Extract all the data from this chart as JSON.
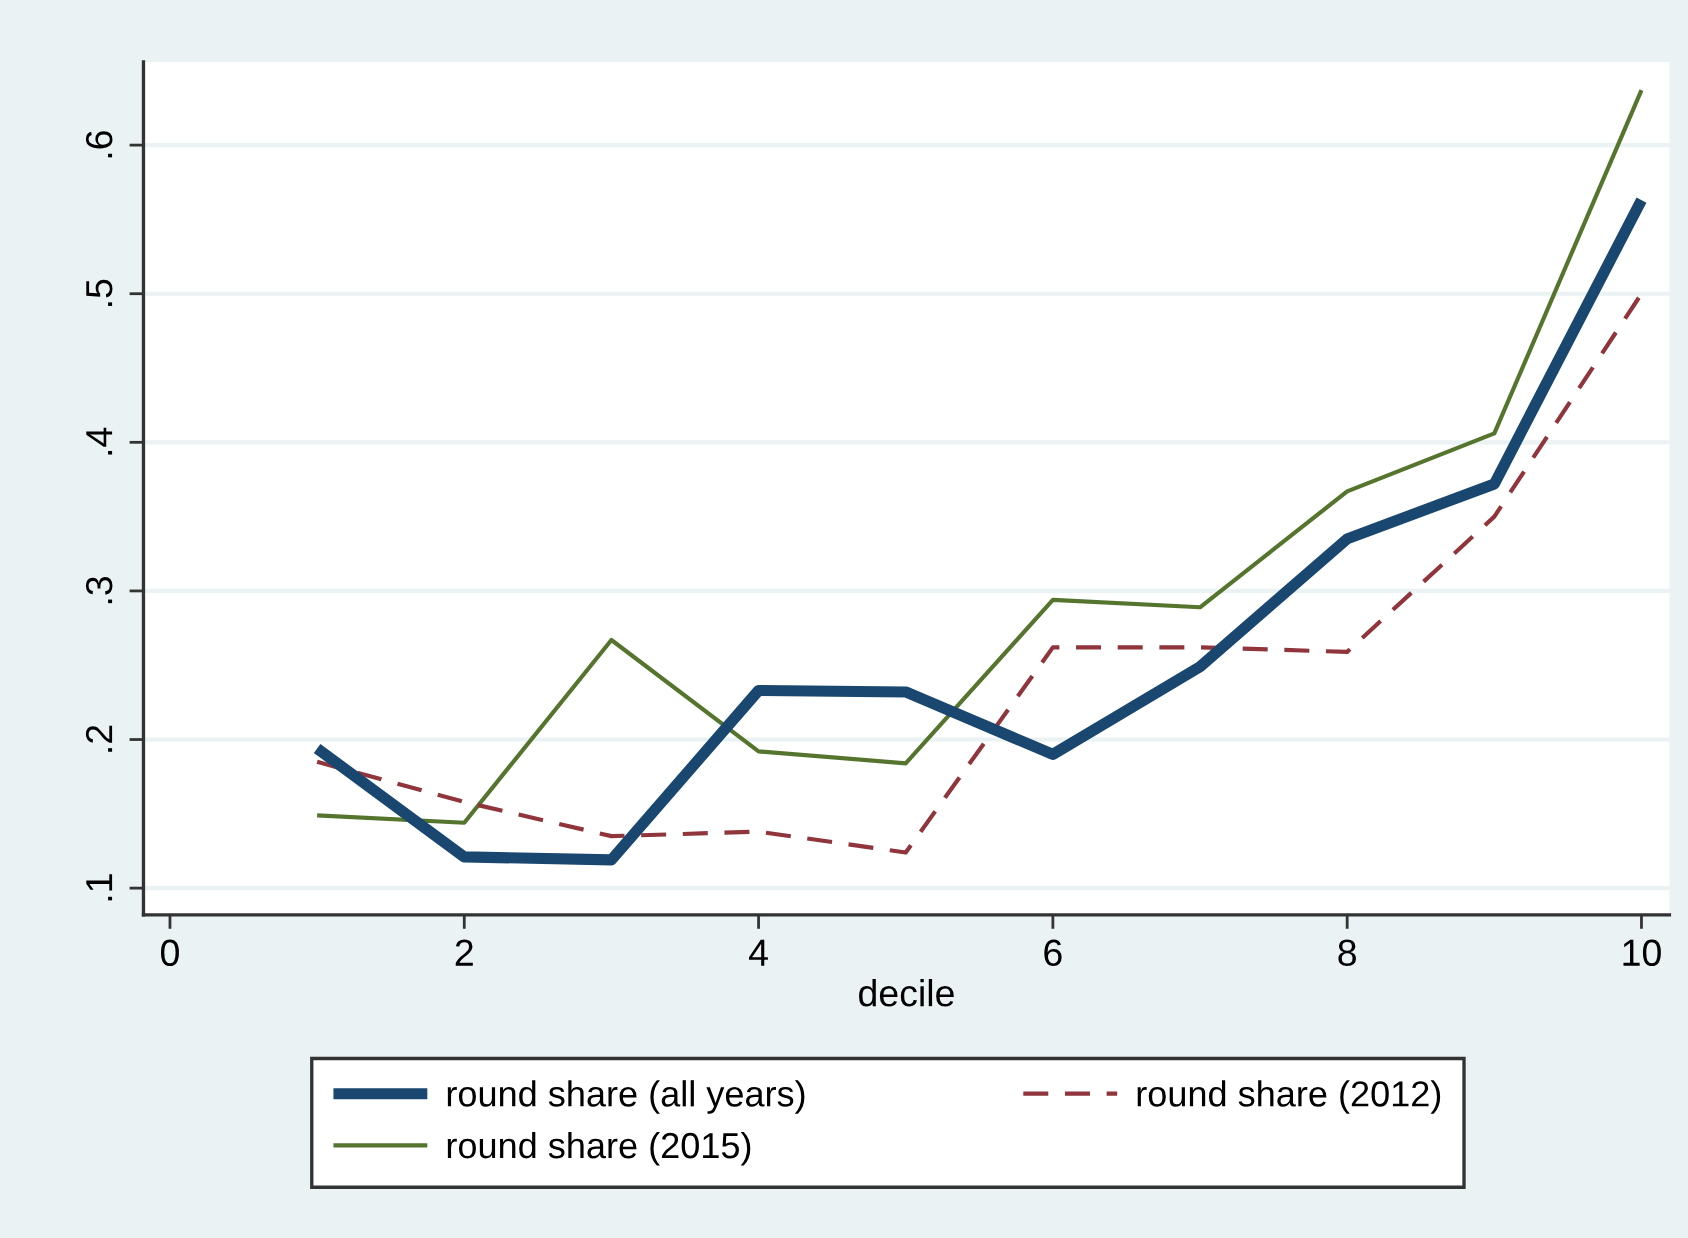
{
  "chart_data": {
    "type": "line",
    "xlabel": "decile",
    "x": [
      1,
      2,
      3,
      4,
      5,
      6,
      7,
      8,
      9,
      10
    ],
    "series": [
      {
        "name": "round share (all years)",
        "color": "#1a476f",
        "line_style": "solid",
        "values": [
          0.194,
          0.121,
          0.119,
          0.233,
          0.232,
          0.19,
          0.249,
          0.335,
          0.372,
          0.563
        ]
      },
      {
        "name": "round share (2012)",
        "color": "#90353b",
        "line_style": "dashed",
        "values": [
          0.185,
          0.158,
          0.135,
          0.138,
          0.124,
          0.262,
          0.262,
          0.259,
          0.35,
          0.5
        ]
      },
      {
        "name": "round share (2015)",
        "color": "#55752f",
        "line_style": "solid",
        "values": [
          0.149,
          0.144,
          0.267,
          0.192,
          0.184,
          0.294,
          0.289,
          0.367,
          0.406,
          0.637
        ]
      }
    ],
    "xlim": [
      -0.18,
      10.19
    ],
    "xticks": [
      0,
      2,
      4,
      6,
      8,
      10
    ],
    "ylim": [
      0.082,
      0.656
    ],
    "yticks": [
      {
        "value": 0.1,
        "label": ".1"
      },
      {
        "value": 0.2,
        "label": ".2"
      },
      {
        "value": 0.3,
        "label": ".3"
      },
      {
        "value": 0.4,
        "label": ".4"
      },
      {
        "value": 0.5,
        "label": ".5"
      },
      {
        "value": 0.6,
        "label": ".6"
      }
    ],
    "grid": "y",
    "legend": "bottom",
    "marker": "none"
  }
}
